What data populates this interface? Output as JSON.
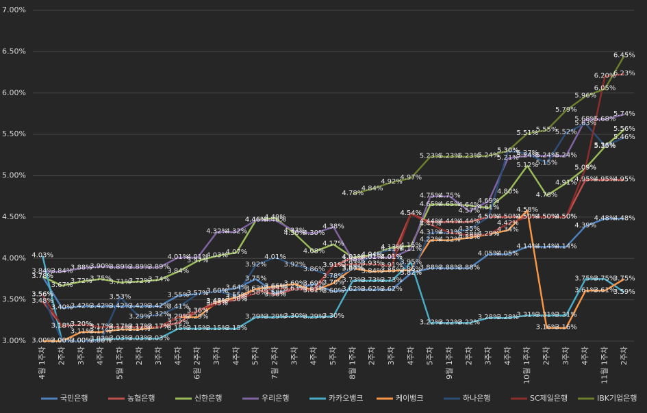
{
  "chart_data": {
    "type": "line",
    "categories": [
      "4월 1주차",
      "2주차",
      "3주차",
      "4주차",
      "5월 1주차",
      "2주차",
      "3주차",
      "4주차",
      "6월 2주차",
      "3주차",
      "4주차",
      "5주차",
      "7월 2주차",
      "3주차",
      "4주차",
      "5주차",
      "8월 1주차",
      "2주차",
      "3주차",
      "4주차",
      "5주차",
      "9월 1주차",
      "2주차",
      "3주차",
      "4주차",
      "10월 1주차",
      "2주차",
      "3주차",
      "4주차",
      "11월 1주차",
      "2주차"
    ],
    "ylim": [
      3.0,
      7.0
    ],
    "yticks": [
      {
        "value": 3.0,
        "label": "3.00%"
      },
      {
        "value": 3.5,
        "label": "3.50%"
      },
      {
        "value": 4.0,
        "label": "4.00%"
      },
      {
        "value": 4.5,
        "label": "4.50%"
      },
      {
        "value": 5.0,
        "label": "5.00%"
      },
      {
        "value": 5.5,
        "label": "5.50%"
      },
      {
        "value": 6.0,
        "label": "6.00%"
      },
      {
        "value": 6.5,
        "label": "6.50%"
      },
      {
        "value": 7.0,
        "label": "7.00%"
      }
    ],
    "grid": true,
    "legend": "bottom",
    "series": [
      {
        "name": "국민은행",
        "color": "#4f81bd",
        "values": [
          3.78,
          3.4,
          3.42,
          3.42,
          3.42,
          3.42,
          3.42,
          3.55,
          3.57,
          3.6,
          3.64,
          3.75,
          3.58,
          3.63,
          3.69,
          3.6,
          3.62,
          3.62,
          3.62,
          3.82,
          3.88,
          3.88,
          3.88,
          4.05,
          4.05,
          4.14,
          4.14,
          4.14,
          4.39,
          4.48,
          4.48
        ],
        "value_labels": [
          "3.78%",
          "3.40%",
          "3.42%",
          "3.42%",
          "3.42%",
          "3.42%",
          "3.42%",
          "3.55%",
          "3.57%",
          "3.60%",
          "3.64%",
          "3.75%",
          "3.58%",
          "3.63%",
          "3.69%",
          "3.60%",
          "3.62%",
          "3.62%",
          "3.62%",
          "3.82%",
          "3.88%",
          "3.88%",
          "3.88%",
          "4.05%",
          "4.05%",
          "4.14%",
          "4.14%",
          "4.14%",
          "4.39%",
          "4.48%",
          "4.48%"
        ]
      },
      {
        "name": "농협은행",
        "color": "#c0504d",
        "values": [
          3.48,
          3.18,
          3.2,
          3.17,
          3.17,
          3.17,
          3.17,
          3.22,
          3.36,
          3.48,
          3.5,
          3.63,
          3.56,
          3.63,
          3.63,
          3.91,
          4.01,
          4.01,
          4.01,
          4.54,
          4.44,
          4.44,
          4.44,
          4.5,
          4.5,
          4.5,
          4.5,
          4.5,
          4.95,
          4.95,
          4.95
        ],
        "value_labels": [
          "3.48%",
          "3.18%",
          "3.20%",
          "3.17%",
          "3.17%",
          "3.17%",
          "3.17%",
          "3.22%",
          "3.36%",
          "3.48%",
          "3.50%",
          "3.63%",
          "3.56%",
          "3.63%",
          "3.63%",
          "3.91%",
          "4.01%",
          "4.01%",
          "4.01%",
          "4.54%",
          "4.44%",
          "4.44%",
          "4.44%",
          "4.50%",
          "4.50%",
          "4.50%",
          "4.50%",
          "4.50%",
          "4.95%",
          "4.95%",
          "4.95%"
        ]
      },
      {
        "name": "신한은행",
        "color": "#9bbb59",
        "values": [
          3.78,
          3.67,
          3.72,
          3.75,
          3.71,
          3.72,
          3.74,
          3.84,
          3.97,
          4.03,
          4.07,
          4.46,
          4.49,
          4.3,
          4.08,
          4.17,
          4.01,
          4.04,
          4.13,
          4.15,
          4.65,
          4.65,
          4.64,
          4.61,
          4.8,
          5.12,
          4.76,
          4.91,
          5.09,
          5.35,
          5.56
        ],
        "value_labels": [
          "3.78%",
          "3.67%",
          "3.72%",
          "3.75%",
          "3.71%",
          "3.72%",
          "3.74%",
          "3.84%",
          "3.97%",
          "4.03%",
          "4.07%",
          "4.46%",
          "4.49%",
          "4.30%",
          "4.08%",
          "4.17%",
          "4.01%",
          "4.04%",
          "4.13%",
          "4.15%",
          "4.65%",
          "4.65%",
          "4.64%",
          "4.61%",
          "4.80%",
          "5.12%",
          "4.76%",
          "4.91%",
          "5.09%",
          "5.35%",
          "5.56%"
        ]
      },
      {
        "name": "우리은행",
        "color": "#8064a2",
        "values": [
          3.84,
          3.84,
          3.88,
          3.9,
          3.89,
          3.89,
          3.89,
          4.01,
          4.01,
          4.32,
          4.32,
          4.46,
          4.46,
          4.33,
          4.3,
          4.38,
          3.98,
          4.01,
          4.01,
          4.11,
          4.75,
          4.75,
          4.57,
          4.69,
          5.21,
          5.24,
          5.24,
          5.24,
          5.68,
          5.68,
          5.74
        ],
        "value_labels": [
          "3.84%",
          "3.84%",
          "3.88%",
          "3.90%",
          "3.89%",
          "3.89%",
          "3.89%",
          "4.01%",
          "4.01%",
          "4.32%",
          "4.32%",
          "4.46%",
          "4.46%",
          "4.33%",
          "4.30%",
          "4.38%",
          "3.98%",
          "4.01%",
          "4.01%",
          "4.11%",
          "4.75%",
          "4.75%",
          "4.57%",
          "4.69%",
          "5.21%",
          "5.24%",
          "5.24%",
          "5.24%",
          "5.68%",
          "5.68%",
          "5.74%"
        ]
      },
      {
        "name": "카카오뱅크",
        "color": "#4bacc6",
        "values": [
          4.03,
          3.0,
          3.0,
          3.02,
          3.03,
          3.03,
          3.03,
          3.15,
          3.15,
          3.15,
          3.15,
          3.29,
          3.29,
          3.3,
          3.29,
          3.3,
          3.73,
          3.73,
          3.73,
          3.95,
          3.22,
          3.22,
          3.22,
          3.28,
          3.28,
          3.31,
          3.31,
          3.31,
          3.75,
          3.75,
          3.59
        ],
        "value_labels": [
          "4.03%",
          "3.00%",
          "3.00%",
          "3.02%",
          "3.03%",
          "3.03%",
          "3.03%",
          "3.15%",
          "3.15%",
          "3.15%",
          "3.15%",
          "3.29%",
          "3.29%",
          "3.30%",
          "3.29%",
          "3.30%",
          "3.73%",
          "3.73%",
          "3.73%",
          "3.95%",
          "3.22%",
          "3.22%",
          "3.22%",
          "3.28%",
          "3.28%",
          "3.31%",
          "3.31%",
          "3.31%",
          "3.75%",
          "3.75%",
          "3.59%"
        ]
      },
      {
        "name": "케이뱅크",
        "color": "#f79646",
        "values": [
          3.0,
          3.0,
          3.11,
          3.11,
          3.14,
          3.14,
          3.17,
          3.29,
          3.29,
          3.47,
          3.53,
          3.63,
          3.66,
          3.69,
          3.61,
          3.7,
          3.88,
          3.84,
          3.85,
          3.86,
          4.22,
          4.22,
          4.25,
          4.29,
          4.34,
          4.58,
          3.16,
          3.16,
          3.61,
          3.61,
          3.75
        ],
        "value_labels": [
          "3.00%",
          "3.00%",
          "3.11%",
          "3.11%",
          "3.14%",
          "3.14%",
          "3.17%",
          "3.29%",
          "3.29%",
          "3.47%",
          "3.53%",
          "3.63%",
          "3.66%",
          "3.69%",
          "3.61%",
          "3.70%",
          "3.88%",
          "3.84%",
          "3.85%",
          "3.86%",
          "4.22%",
          "4.22%",
          "4.25%",
          "4.29%",
          "4.34%",
          "4.58%",
          "3.16%",
          "3.16%",
          "3.61%",
          "3.61%",
          "3.75%"
        ]
      },
      {
        "name": "하나은행",
        "color": "#2c4d75",
        "values": [
          3.56,
          3.0,
          3.0,
          3.0,
          3.53,
          3.29,
          3.32,
          3.41,
          3.57,
          3.6,
          3.55,
          3.92,
          4.01,
          3.92,
          3.86,
          3.78,
          3.87,
          4.04,
          4.11,
          3.82,
          4.31,
          4.31,
          4.35,
          4.5,
          5.3,
          5.27,
          5.15,
          5.52,
          5.63,
          5.36,
          5.46
        ],
        "value_labels": [
          "3.56%",
          "3.00%",
          "3.00%",
          "3.00%",
          "3.53%",
          "3.29%",
          "3.32%",
          "3.41%",
          "3.57%",
          "3.60%",
          "3.55%",
          "3.92%",
          "4.01%",
          "3.92%",
          "3.86%",
          "3.78%",
          "3.87%",
          "4.04%",
          "4.11%",
          "3.82%",
          "4.31%",
          "4.31%",
          "4.35%",
          "4.50%",
          "5.30%",
          "5.27%",
          "5.15%",
          "5.52%",
          "5.63%",
          "5.36%",
          "5.46%"
        ]
      },
      {
        "name": "SC제일은행",
        "color": "#8b2e2b",
        "values": [
          3.56,
          3.18,
          3.2,
          3.17,
          3.17,
          3.17,
          3.17,
          3.29,
          3.36,
          3.45,
          3.5,
          3.58,
          3.64,
          3.63,
          3.61,
          3.91,
          3.93,
          3.93,
          3.91,
          4.54,
          4.41,
          4.31,
          4.28,
          4.29,
          4.42,
          4.5,
          4.5,
          4.5,
          5.09,
          6.2,
          6.23
        ],
        "value_labels": [
          "3.56%",
          "3.18%",
          "3.20%",
          "3.17%",
          "3.17%",
          "3.17%",
          "3.17%",
          "3.29%",
          "3.36%",
          "3.45%",
          "3.50%",
          "3.58%",
          "3.64%",
          "3.63%",
          "3.61%",
          "3.91%",
          "3.93%",
          "3.93%",
          "3.91%",
          "4.54%",
          "4.41%",
          "4.31%",
          "4.28%",
          "4.29%",
          "4.42%",
          "4.50%",
          "4.50%",
          "4.50%",
          "5.09%",
          "6.20%",
          "6.23%"
        ]
      },
      {
        "name": "IBK기업은행",
        "color": "#6b7f2f",
        "values": [
          null,
          null,
          null,
          null,
          null,
          null,
          null,
          null,
          null,
          null,
          null,
          null,
          null,
          null,
          null,
          null,
          4.78,
          4.84,
          4.92,
          4.97,
          5.23,
          5.23,
          5.23,
          5.24,
          5.3,
          5.51,
          5.55,
          5.79,
          5.96,
          6.05,
          6.45
        ],
        "value_labels": [
          null,
          null,
          null,
          null,
          null,
          null,
          null,
          null,
          null,
          null,
          null,
          null,
          null,
          null,
          null,
          null,
          "4.78%",
          "4.84%",
          "4.92%",
          "4.97%",
          "5.23%",
          "5.23%",
          "5.23%",
          "5.24%",
          "5.30%",
          "5.51%",
          "5.55%",
          "5.79%",
          "5.96%",
          "6.05%",
          "6.45%"
        ]
      }
    ]
  }
}
